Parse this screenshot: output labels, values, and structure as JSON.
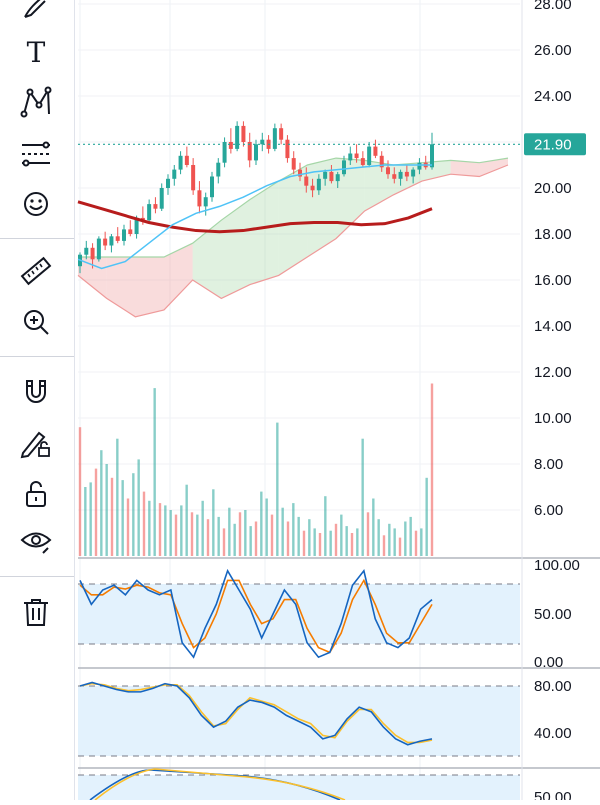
{
  "toolbar": {
    "tools": [
      {
        "icon": "brush-icon"
      },
      {
        "icon": "text-icon"
      },
      {
        "icon": "pattern-icon"
      },
      {
        "icon": "forecast-icon"
      },
      {
        "icon": "emoji-icon"
      },
      {
        "icon": "ruler-icon"
      },
      {
        "icon": "zoom-in-icon"
      },
      {
        "icon": "magnet-icon"
      },
      {
        "icon": "lock-drawing-icon"
      },
      {
        "icon": "lock-icon"
      },
      {
        "icon": "eye-icon"
      },
      {
        "icon": "trash-icon"
      }
    ],
    "text_tool_glyph": "T"
  },
  "colors": {
    "up": "#26a69a",
    "down": "#ef5350",
    "ma_long": "#b71c1c",
    "ma_short": "#4fc3f7",
    "cloud_green": "#a5d6a7",
    "cloud_red": "#ef9a9a",
    "k_line": "#1565c0",
    "d_line": "#f57c00",
    "osc_fill": "#e3f2fd",
    "price_tag": "#26a69a"
  },
  "price_axis": {
    "ticks": [
      "28.00",
      "26.00",
      "24.00",
      "22.00",
      "20.00",
      "18.00",
      "16.00",
      "14.00",
      "12.00"
    ],
    "last_price": "21.90"
  },
  "volume_axis": {
    "ticks": [
      "10.00",
      "8.00",
      "6.00"
    ]
  },
  "stoch_axis": {
    "ticks": [
      "100.00",
      "50.00",
      "0.00"
    ]
  },
  "rsi_axis": {
    "ticks": [
      "80.00",
      "40.00"
    ]
  },
  "bottom_axis": {
    "ticks": [
      "50.00"
    ]
  },
  "chart_data": {
    "type": "candlestick",
    "ylim": [
      12.0,
      28.5
    ],
    "last_price": 21.9,
    "candles": [
      [
        16.6,
        17.2,
        16.3,
        17.1
      ],
      [
        17.1,
        17.7,
        16.9,
        17.4
      ],
      [
        17.4,
        17.6,
        16.5,
        16.9
      ],
      [
        16.9,
        17.9,
        16.8,
        17.8
      ],
      [
        17.8,
        18.1,
        17.3,
        17.5
      ],
      [
        17.5,
        18.0,
        17.2,
        17.9
      ],
      [
        17.9,
        18.3,
        17.6,
        17.7
      ],
      [
        17.7,
        18.4,
        17.5,
        18.2
      ],
      [
        18.2,
        18.6,
        17.9,
        18.0
      ],
      [
        18.0,
        18.8,
        17.8,
        18.7
      ],
      [
        18.7,
        19.2,
        18.4,
        18.6
      ],
      [
        18.6,
        19.5,
        18.5,
        19.3
      ],
      [
        19.3,
        19.6,
        18.9,
        19.1
      ],
      [
        19.1,
        20.2,
        19.0,
        20.0
      ],
      [
        20.0,
        20.6,
        19.7,
        20.4
      ],
      [
        20.4,
        21.0,
        20.1,
        20.8
      ],
      [
        20.8,
        21.6,
        20.6,
        21.4
      ],
      [
        21.4,
        21.8,
        20.9,
        21.0
      ],
      [
        21.0,
        21.3,
        19.7,
        19.9
      ],
      [
        19.9,
        20.3,
        18.9,
        19.2
      ],
      [
        19.2,
        19.8,
        18.8,
        19.6
      ],
      [
        19.6,
        20.7,
        19.4,
        20.5
      ],
      [
        20.5,
        21.3,
        20.2,
        21.1
      ],
      [
        21.1,
        22.2,
        20.9,
        22.0
      ],
      [
        22.0,
        22.6,
        21.5,
        21.7
      ],
      [
        21.7,
        22.9,
        21.6,
        22.7
      ],
      [
        22.7,
        22.9,
        21.8,
        22.0
      ],
      [
        22.0,
        22.4,
        20.9,
        21.2
      ],
      [
        21.2,
        22.1,
        21.0,
        21.9
      ],
      [
        21.9,
        22.4,
        21.6,
        22.1
      ],
      [
        22.1,
        22.3,
        21.5,
        21.7
      ],
      [
        21.7,
        22.8,
        21.6,
        22.6
      ],
      [
        22.6,
        22.8,
        21.9,
        22.1
      ],
      [
        22.1,
        22.3,
        21.1,
        21.3
      ],
      [
        21.3,
        21.6,
        20.6,
        20.8
      ],
      [
        20.8,
        21.1,
        20.3,
        20.5
      ],
      [
        20.5,
        20.9,
        19.8,
        20.1
      ],
      [
        20.1,
        20.4,
        19.6,
        19.9
      ],
      [
        19.9,
        20.6,
        19.7,
        20.4
      ],
      [
        20.4,
        20.8,
        20.1,
        20.7
      ],
      [
        20.7,
        21.0,
        20.2,
        20.3
      ],
      [
        20.3,
        20.7,
        20.0,
        20.6
      ],
      [
        20.6,
        21.4,
        20.5,
        21.2
      ],
      [
        21.2,
        21.8,
        21.0,
        21.5
      ],
      [
        21.5,
        21.9,
        21.1,
        21.3
      ],
      [
        21.3,
        21.6,
        20.9,
        21.0
      ],
      [
        21.0,
        22.0,
        20.9,
        21.8
      ],
      [
        21.8,
        22.1,
        21.3,
        21.4
      ],
      [
        21.4,
        21.6,
        20.7,
        20.9
      ],
      [
        20.9,
        21.2,
        20.4,
        20.6
      ],
      [
        20.6,
        20.9,
        20.2,
        20.4
      ],
      [
        20.4,
        20.8,
        20.1,
        20.7
      ],
      [
        20.7,
        21.0,
        20.3,
        20.5
      ],
      [
        20.5,
        20.9,
        20.2,
        20.8
      ],
      [
        20.8,
        21.3,
        20.6,
        21.1
      ],
      [
        21.1,
        21.4,
        20.8,
        20.9
      ],
      [
        20.9,
        22.4,
        20.8,
        21.9
      ]
    ],
    "ma_long": [
      19.4,
      19.1,
      18.8,
      18.5,
      18.3,
      18.15,
      18.1,
      18.15,
      18.3,
      18.45,
      18.5,
      18.5,
      18.4,
      18.45,
      18.7,
      19.1
    ],
    "ma_short": [
      16.9,
      16.5,
      16.8,
      17.6,
      18.4,
      18.9,
      19.2,
      19.6,
      20.1,
      20.5,
      20.7,
      20.8,
      20.9,
      21.0,
      21.0,
      21.0
    ],
    "cloud_upper": [
      17.0,
      17.0,
      17.0,
      17.0,
      17.6,
      18.6,
      19.5,
      20.3,
      21.0,
      21.3,
      21.2,
      21.0,
      21.1,
      21.2,
      21.1,
      21.3
    ],
    "cloud_lower": [
      16.2,
      15.2,
      14.4,
      14.7,
      16.0,
      15.2,
      15.8,
      16.2,
      17.0,
      17.8,
      19.0,
      19.7,
      20.3,
      20.6,
      20.5,
      21.0
    ],
    "volume": [
      9.6,
      7.0,
      7.2,
      7.8,
      8.6,
      8.0,
      7.4,
      9.1,
      7.3,
      6.5,
      7.6,
      8.2,
      6.8,
      6.4,
      11.3,
      6.3,
      6.2,
      6.0,
      5.8,
      6.2,
      7.1,
      5.9,
      5.8,
      6.4,
      5.6,
      6.9,
      5.7,
      5.2,
      6.1,
      5.4,
      5.9,
      6.0,
      5.3,
      5.5,
      6.8,
      6.5,
      5.8,
      9.8,
      6.1,
      5.5,
      6.3,
      5.7,
      5.1,
      5.6,
      5.2,
      5.0,
      6.6,
      5.1,
      5.4,
      5.8,
      5.3,
      5.0,
      5.2,
      9.1,
      5.9,
      6.5,
      5.6,
      4.9,
      5.4,
      5.2,
      4.8,
      5.5,
      5.7,
      5.1,
      5.2,
      7.4,
      11.5
    ],
    "stoch_k": [
      85,
      60,
      75,
      80,
      70,
      85,
      75,
      70,
      75,
      20,
      5,
      35,
      60,
      95,
      75,
      55,
      25,
      50,
      75,
      60,
      20,
      5,
      10,
      40,
      80,
      95,
      45,
      20,
      15,
      25,
      55,
      65
    ],
    "stoch_d": [
      80,
      70,
      70,
      78,
      76,
      80,
      78,
      72,
      70,
      40,
      15,
      25,
      50,
      85,
      85,
      60,
      40,
      45,
      65,
      65,
      35,
      15,
      10,
      30,
      65,
      85,
      60,
      30,
      20,
      20,
      40,
      60
    ],
    "rsi_a": [
      80,
      83,
      80,
      77,
      75,
      75,
      78,
      82,
      80,
      70,
      55,
      45,
      50,
      62,
      68,
      66,
      62,
      55,
      50,
      45,
      35,
      38,
      52,
      62,
      58,
      45,
      35,
      30,
      33,
      35
    ],
    "rsi_b": [
      80,
      82,
      81,
      78,
      76,
      77,
      79,
      81,
      81,
      72,
      58,
      46,
      48,
      60,
      70,
      67,
      64,
      58,
      52,
      48,
      38,
      36,
      50,
      60,
      60,
      48,
      38,
      32,
      32,
      34
    ]
  }
}
